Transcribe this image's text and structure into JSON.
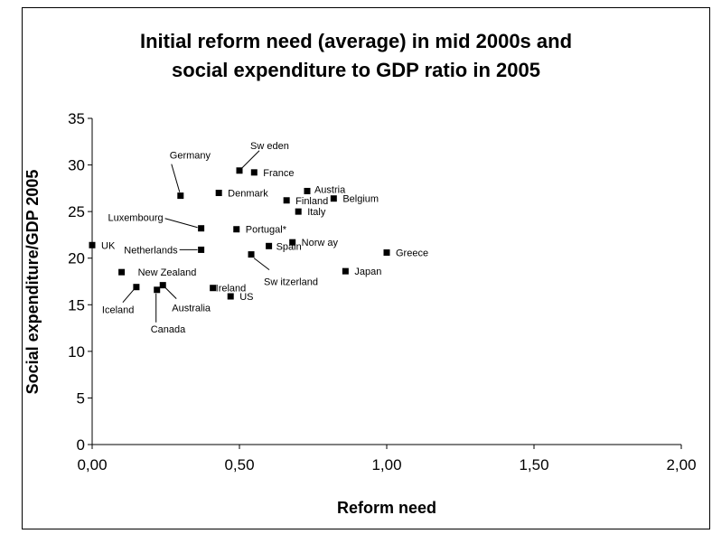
{
  "chart_data": {
    "type": "scatter",
    "title_line1": "Initial reform need (average) in mid 2000s and",
    "title_line2": "social expenditure to GDP ratio in 2005",
    "xlabel": "Reform need",
    "ylabel": "Social expenditure/GDP 2005",
    "xlim": [
      0,
      2
    ],
    "ylim": [
      0,
      35
    ],
    "xticks": [
      "0,00",
      "0,50",
      "1,00",
      "1,50",
      "2,00"
    ],
    "yticks": [
      "0",
      "5",
      "10",
      "15",
      "20",
      "25",
      "30",
      "35"
    ],
    "grid": false,
    "points": [
      {
        "label": "Sw eden",
        "x": 0.5,
        "y": 29.4
      },
      {
        "label": "France",
        "x": 0.55,
        "y": 29.2
      },
      {
        "label": "Germany",
        "x": 0.3,
        "y": 26.7
      },
      {
        "label": "Denmark",
        "x": 0.43,
        "y": 27.0
      },
      {
        "label": "Austria",
        "x": 0.73,
        "y": 27.2
      },
      {
        "label": "Finland",
        "x": 0.66,
        "y": 26.2
      },
      {
        "label": "Belgium",
        "x": 0.82,
        "y": 26.4
      },
      {
        "label": "Italy",
        "x": 0.7,
        "y": 25.0
      },
      {
        "label": "Luxembourg",
        "x": 0.37,
        "y": 23.2
      },
      {
        "label": "Portugal*",
        "x": 0.49,
        "y": 23.1
      },
      {
        "label": "UK",
        "x": 0.0,
        "y": 21.4
      },
      {
        "label": "Netherlands",
        "x": 0.37,
        "y": 20.9
      },
      {
        "label": "Spain",
        "x": 0.6,
        "y": 21.3
      },
      {
        "label": "Norw ay",
        "x": 0.68,
        "y": 21.7
      },
      {
        "label": "Sw itzerland",
        "x": 0.54,
        "y": 20.4
      },
      {
        "label": "Greece",
        "x": 1.0,
        "y": 20.6
      },
      {
        "label": "Japan",
        "x": 0.86,
        "y": 18.6
      },
      {
        "label": "New Zealand",
        "x": 0.1,
        "y": 18.5
      },
      {
        "label": "Iceland",
        "x": 0.15,
        "y": 16.9
      },
      {
        "label": "Canada",
        "x": 0.22,
        "y": 16.6
      },
      {
        "label": "Australia",
        "x": 0.24,
        "y": 17.1
      },
      {
        "label": "Ireland",
        "x": 0.41,
        "y": 16.8
      },
      {
        "label": "US",
        "x": 0.47,
        "y": 15.9
      }
    ]
  }
}
